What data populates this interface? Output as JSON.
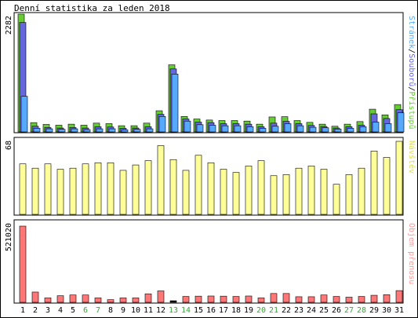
{
  "title": "Denní statistika za leden 2018",
  "colors": {
    "background": "#ffffff",
    "hits": "#66cc33",
    "files": "#6666dd",
    "pages": "#55aaff",
    "visits": "#ffff99",
    "kbytes": "#ff7777",
    "weekend_label": "#33aa33",
    "axis_label": "#000000"
  },
  "chart_data": [
    {
      "type": "bar",
      "panel": "top",
      "ylabel_parts": [
        "Stránek",
        "/",
        "Souborů",
        "/",
        "Přístupů"
      ],
      "ymax_label": "2282",
      "ylim": [
        0,
        2282
      ],
      "categories": [
        "1",
        "2",
        "3",
        "4",
        "5",
        "6",
        "7",
        "8",
        "9",
        "10",
        "11",
        "12",
        "13",
        "14",
        "15",
        "16",
        "17",
        "18",
        "19",
        "20",
        "21",
        "22",
        "23",
        "24",
        "25",
        "26",
        "27",
        "28",
        "29",
        "30",
        "31"
      ],
      "series": [
        {
          "name": "Přístupů",
          "color": "#66cc33",
          "values": [
            2282,
            180,
            145,
            130,
            150,
            130,
            170,
            160,
            120,
            120,
            170,
            410,
            1300,
            300,
            250,
            230,
            220,
            220,
            210,
            150,
            290,
            295,
            220,
            185,
            150,
            110,
            150,
            200,
            440,
            330,
            530
          ]
        },
        {
          "name": "Souborů",
          "color": "#6666dd",
          "values": [
            2120,
            110,
            85,
            75,
            85,
            75,
            100,
            95,
            70,
            75,
            100,
            340,
            1220,
            250,
            190,
            180,
            160,
            160,
            150,
            100,
            170,
            205,
            160,
            125,
            105,
            75,
            100,
            130,
            350,
            260,
            430
          ]
        },
        {
          "name": "Stránek",
          "color": "#55aaff",
          "values": [
            690,
            70,
            60,
            50,
            60,
            45,
            60,
            60,
            40,
            50,
            60,
            300,
            1120,
            210,
            140,
            130,
            120,
            120,
            100,
            70,
            110,
            160,
            120,
            90,
            80,
            55,
            70,
            100,
            190,
            160,
            370
          ]
        }
      ]
    },
    {
      "type": "bar",
      "panel": "middle",
      "ylabel": "Návštěv",
      "ymax_label": "68",
      "ylim": [
        0,
        68
      ],
      "categories": [
        "1",
        "2",
        "3",
        "4",
        "5",
        "6",
        "7",
        "8",
        "9",
        "10",
        "11",
        "12",
        "13",
        "14",
        "15",
        "16",
        "17",
        "18",
        "19",
        "20",
        "21",
        "22",
        "23",
        "24",
        "25",
        "26",
        "27",
        "28",
        "29",
        "30",
        "31"
      ],
      "series": [
        {
          "name": "Návštěv",
          "color": "#ffff99",
          "values": [
            47,
            43,
            47,
            42,
            43,
            47,
            48,
            48,
            41,
            46,
            50,
            64,
            51,
            41,
            55,
            48,
            42,
            39,
            45,
            50,
            36,
            37,
            43,
            45,
            42,
            28,
            37,
            43,
            59,
            53,
            68
          ]
        }
      ]
    },
    {
      "type": "bar",
      "panel": "bottom",
      "ylabel": "Objem přenosu",
      "ymax_label": "521020",
      "ylim": [
        0,
        521020
      ],
      "categories": [
        "1",
        "2",
        "3",
        "4",
        "5",
        "6",
        "7",
        "8",
        "9",
        "10",
        "11",
        "12",
        "13",
        "14",
        "15",
        "16",
        "17",
        "18",
        "19",
        "20",
        "21",
        "22",
        "23",
        "24",
        "25",
        "26",
        "27",
        "28",
        "29",
        "30",
        "31"
      ],
      "weekend_days": [
        "6",
        "7",
        "13",
        "14",
        "20",
        "21",
        "27",
        "28"
      ],
      "series": [
        {
          "name": "Objem přenosu",
          "color": "#ff7777",
          "values": [
            521020,
            70000,
            30000,
            45000,
            50000,
            50000,
            30000,
            18000,
            30000,
            30000,
            58000,
            78000,
            9000,
            40000,
            42000,
            43000,
            42000,
            40000,
            43000,
            30000,
            60000,
            60000,
            38000,
            38000,
            50000,
            40000,
            35000,
            40000,
            48000,
            52000,
            80000
          ]
        }
      ]
    }
  ]
}
